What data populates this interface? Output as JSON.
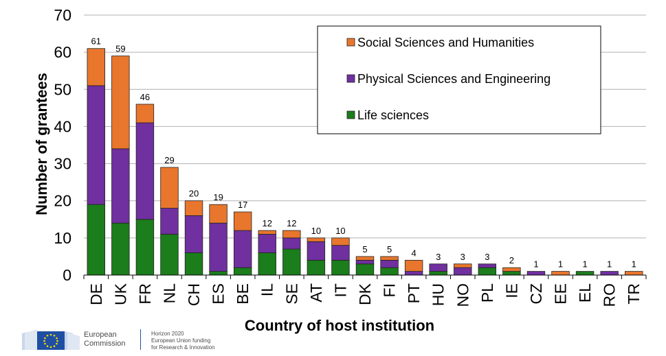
{
  "chart_data": {
    "type": "bar",
    "stacked": true,
    "xlabel": "Country of host institution",
    "ylabel": "Number of grantees",
    "ylim": [
      0,
      70
    ],
    "yticks": [
      0,
      10,
      20,
      30,
      40,
      50,
      60,
      70
    ],
    "grid": "horizontal",
    "legend_position": "top-right",
    "categories": [
      "DE",
      "UK",
      "FR",
      "NL",
      "CH",
      "ES",
      "BE",
      "IL",
      "SE",
      "AT",
      "IT",
      "DK",
      "FI",
      "PT",
      "HU",
      "NO",
      "PL",
      "IE",
      "CZ",
      "EE",
      "EL",
      "RO",
      "TR"
    ],
    "totals": [
      61,
      59,
      46,
      29,
      20,
      19,
      17,
      12,
      12,
      10,
      10,
      5,
      5,
      4,
      3,
      3,
      3,
      2,
      1,
      1,
      1,
      1,
      1
    ],
    "series": [
      {
        "name": "Life sciences",
        "color": "#1b7d1b",
        "values": [
          19,
          14,
          15,
          11,
          6,
          1,
          2,
          6,
          7,
          4,
          4,
          3,
          2,
          0,
          1,
          0,
          2,
          1,
          0,
          0,
          1,
          0,
          0
        ]
      },
      {
        "name": "Physical Sciences and Engineering",
        "color": "#7030a0",
        "values": [
          32,
          20,
          26,
          7,
          10,
          13,
          10,
          5,
          3,
          5,
          4,
          1,
          2,
          1,
          2,
          2,
          1,
          0,
          1,
          0,
          0,
          1,
          0
        ]
      },
      {
        "name": "Social Sciences and Humanities",
        "color": "#e8762d",
        "values": [
          10,
          25,
          5,
          11,
          4,
          5,
          5,
          1,
          2,
          1,
          2,
          1,
          1,
          3,
          0,
          1,
          0,
          1,
          0,
          1,
          0,
          0,
          1
        ]
      }
    ]
  },
  "footer": {
    "ec_line1": "European",
    "ec_line2": "Commission",
    "h2020_line1": "Horizon 2020",
    "h2020_line2": "European Union funding",
    "h2020_line3": "for Research & Innovation",
    "ec_logo_icon": "european-commission-flag-logo"
  }
}
